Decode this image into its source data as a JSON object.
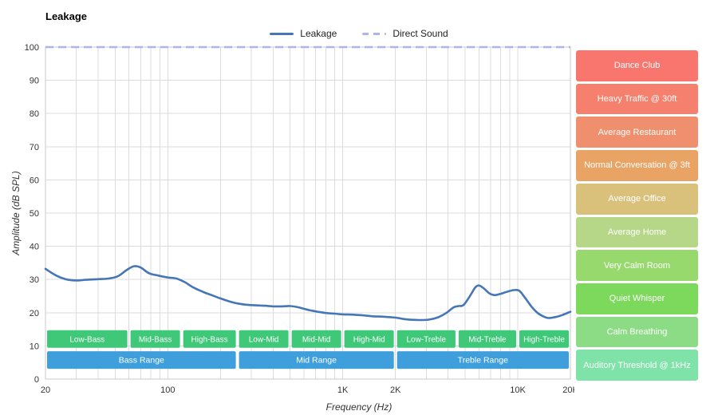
{
  "title": "Leakage",
  "legend": {
    "items": [
      {
        "label": "Leakage",
        "style": "solid",
        "color": "#4576b5"
      },
      {
        "label": "Direct Sound",
        "style": "dashed",
        "color": "#aeb5ea"
      }
    ]
  },
  "axes": {
    "x_label": "Frequency (Hz)",
    "y_label": "Amplitude (dB SPL)",
    "x_ticks": [
      {
        "f": 20,
        "label": "20"
      },
      {
        "f": 100,
        "label": "100"
      },
      {
        "f": 1000,
        "label": "1K"
      },
      {
        "f": 2000,
        "label": "2K"
      },
      {
        "f": 10000,
        "label": "10K"
      },
      {
        "f": 20000,
        "label": "20K"
      }
    ],
    "y_ticks": [
      0,
      10,
      20,
      30,
      40,
      50,
      60,
      70,
      80,
      90,
      100
    ]
  },
  "chart_data": {
    "type": "line",
    "x_scale": "log",
    "x_range": [
      20,
      20000
    ],
    "y_range": [
      0,
      100
    ],
    "grid": true,
    "colors": {
      "grid": "#dcdcdc",
      "border": "#c9c9c9",
      "tick_text": "#333333",
      "sub_band": "#3ec878",
      "range_band": "#3f9fdd"
    },
    "series": [
      {
        "name": "Leakage",
        "color": "#4576b5",
        "style": "solid",
        "points": [
          [
            20,
            33.2
          ],
          [
            23,
            31.2
          ],
          [
            26,
            30.1
          ],
          [
            30,
            29.7
          ],
          [
            34,
            29.9
          ],
          [
            40,
            30.1
          ],
          [
            46,
            30.3
          ],
          [
            52,
            31.0
          ],
          [
            58,
            32.8
          ],
          [
            64,
            34.0
          ],
          [
            70,
            33.6
          ],
          [
            78,
            31.9
          ],
          [
            88,
            31.2
          ],
          [
            100,
            30.6
          ],
          [
            112,
            30.3
          ],
          [
            125,
            29.2
          ],
          [
            140,
            27.6
          ],
          [
            160,
            26.2
          ],
          [
            180,
            25.2
          ],
          [
            200,
            24.3
          ],
          [
            225,
            23.4
          ],
          [
            250,
            22.8
          ],
          [
            280,
            22.4
          ],
          [
            320,
            22.2
          ],
          [
            360,
            22.1
          ],
          [
            400,
            21.9
          ],
          [
            450,
            21.9
          ],
          [
            500,
            22.0
          ],
          [
            560,
            21.6
          ],
          [
            640,
            20.8
          ],
          [
            720,
            20.3
          ],
          [
            800,
            19.9
          ],
          [
            900,
            19.7
          ],
          [
            1000,
            19.5
          ],
          [
            1150,
            19.4
          ],
          [
            1300,
            19.2
          ],
          [
            1500,
            18.9
          ],
          [
            1700,
            18.8
          ],
          [
            2000,
            18.5
          ],
          [
            2300,
            18.0
          ],
          [
            2700,
            17.8
          ],
          [
            3100,
            17.9
          ],
          [
            3500,
            18.6
          ],
          [
            3900,
            19.9
          ],
          [
            4300,
            21.6
          ],
          [
            4600,
            22.0
          ],
          [
            4900,
            22.3
          ],
          [
            5300,
            24.8
          ],
          [
            5700,
            27.5
          ],
          [
            6000,
            28.2
          ],
          [
            6400,
            27.3
          ],
          [
            6900,
            25.8
          ],
          [
            7400,
            25.3
          ],
          [
            8000,
            25.7
          ],
          [
            8800,
            26.4
          ],
          [
            9500,
            26.8
          ],
          [
            10200,
            26.6
          ],
          [
            11000,
            24.5
          ],
          [
            12000,
            21.8
          ],
          [
            13000,
            19.9
          ],
          [
            14000,
            18.9
          ],
          [
            15000,
            18.4
          ],
          [
            16500,
            18.7
          ],
          [
            18000,
            19.3
          ],
          [
            20000,
            20.3
          ]
        ]
      },
      {
        "name": "Direct Sound",
        "color": "#aeb5ea",
        "style": "dashed",
        "points": [
          [
            20,
            100
          ],
          [
            20000,
            100
          ]
        ]
      }
    ],
    "bands": {
      "sub": [
        {
          "label": "Low-Bass",
          "from": 20,
          "to": 60
        },
        {
          "label": "Mid-Bass",
          "from": 60,
          "to": 120
        },
        {
          "label": "High-Bass",
          "from": 120,
          "to": 250
        },
        {
          "label": "Low-Mid",
          "from": 250,
          "to": 500
        },
        {
          "label": "Mid-Mid",
          "from": 500,
          "to": 1000
        },
        {
          "label": "High-Mid",
          "from": 1000,
          "to": 2000
        },
        {
          "label": "Low-Treble",
          "from": 2000,
          "to": 4500
        },
        {
          "label": "Mid-Treble",
          "from": 4500,
          "to": 10000
        },
        {
          "label": "High-Treble",
          "from": 10000,
          "to": 20000
        }
      ],
      "ranges": [
        {
          "label": "Bass Range",
          "from": 20,
          "to": 250
        },
        {
          "label": "Mid Range",
          "from": 250,
          "to": 2000
        },
        {
          "label": "Treble Range",
          "from": 2000,
          "to": 20000
        }
      ]
    }
  },
  "noise_levels": {
    "items": [
      {
        "label": "Dance Club",
        "color": "#f8766d"
      },
      {
        "label": "Heavy Traffic @ 30ft",
        "color": "#f5806d"
      },
      {
        "label": "Average Restaurant",
        "color": "#ef8f6d"
      },
      {
        "label": "Normal Conversation @ 3ft",
        "color": "#e9a465"
      },
      {
        "label": "Average Office",
        "color": "#d9c17c"
      },
      {
        "label": "Average Home",
        "color": "#b7d788"
      },
      {
        "label": "Very Calm Room",
        "color": "#98d96e"
      },
      {
        "label": "Quiet Whisper",
        "color": "#7dd95c"
      },
      {
        "label": "Calm Breathing",
        "color": "#8cdc85"
      },
      {
        "label": "Auditory Threshold @ 1kHz",
        "color": "#7fe2a9"
      }
    ]
  }
}
